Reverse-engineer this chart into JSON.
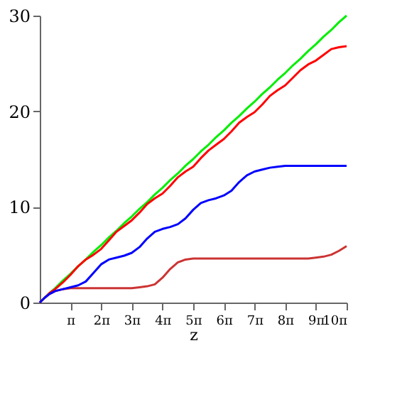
{
  "chart_data": {
    "type": "line",
    "xlabel": "z",
    "x": [
      0,
      0.5,
      1.0,
      1.57,
      2.36,
      3.14,
      3.93,
      4.71,
      5.5,
      6.28,
      7.07,
      7.85,
      8.64,
      9.42,
      10.21,
      11.0,
      11.78,
      12.57,
      13.35,
      14.14,
      14.92,
      15.71,
      16.49,
      17.28,
      18.06,
      18.85,
      19.63,
      20.42,
      21.21,
      21.99,
      22.78,
      23.56,
      24.35,
      25.13,
      25.92,
      26.7,
      27.49,
      28.27,
      29.06,
      29.85,
      30.63,
      31.42
    ],
    "series": [
      {
        "color": "#00ee00",
        "values": [
          0,
          0.5,
          1.0,
          1.5,
          2.3,
          3.0,
          3.8,
          4.5,
          5.3,
          6.0,
          6.8,
          7.5,
          8.3,
          9.0,
          9.8,
          10.5,
          11.3,
          12.0,
          12.8,
          13.5,
          14.3,
          15.0,
          15.8,
          16.5,
          17.3,
          18.0,
          18.8,
          19.5,
          20.3,
          21.0,
          21.8,
          22.5,
          23.3,
          24.0,
          24.8,
          25.5,
          26.3,
          27.0,
          27.8,
          28.5,
          29.3,
          30.0
        ]
      },
      {
        "color": "#ff0000",
        "values": [
          0,
          0.5,
          1.0,
          1.4,
          2.1,
          2.9,
          3.8,
          4.5,
          5.0,
          5.6,
          6.5,
          7.4,
          8.0,
          8.6,
          9.4,
          10.3,
          10.9,
          11.4,
          12.2,
          13.1,
          13.7,
          14.2,
          15.1,
          15.9,
          16.5,
          17.1,
          17.9,
          18.8,
          19.4,
          19.9,
          20.7,
          21.6,
          22.2,
          22.7,
          23.5,
          24.3,
          24.9,
          25.3,
          25.9,
          26.5,
          26.7,
          26.8
        ]
      },
      {
        "color": "#cc3333",
        "values": [
          0,
          0.5,
          0.9,
          1.2,
          1.4,
          1.5,
          1.5,
          1.5,
          1.5,
          1.5,
          1.5,
          1.5,
          1.5,
          1.5,
          1.6,
          1.7,
          1.9,
          2.6,
          3.5,
          4.2,
          4.5,
          4.6,
          4.6,
          4.6,
          4.6,
          4.6,
          4.6,
          4.6,
          4.6,
          4.6,
          4.6,
          4.6,
          4.6,
          4.6,
          4.6,
          4.6,
          4.6,
          4.7,
          4.8,
          5.0,
          5.4,
          5.9
        ]
      },
      {
        "color": "#0000ff",
        "values": [
          0,
          0.5,
          0.9,
          1.2,
          1.4,
          1.6,
          1.8,
          2.2,
          3.1,
          4.0,
          4.5,
          4.7,
          4.9,
          5.2,
          5.8,
          6.7,
          7.4,
          7.7,
          7.9,
          8.2,
          8.8,
          9.7,
          10.4,
          10.7,
          10.9,
          11.2,
          11.7,
          12.6,
          13.3,
          13.7,
          13.9,
          14.1,
          14.2,
          14.3,
          14.3,
          14.3,
          14.3,
          14.3,
          14.3,
          14.3,
          14.3,
          14.3
        ]
      }
    ],
    "xlim": [
      0,
      31.42
    ],
    "ylim": [
      0,
      30
    ],
    "xticks": [
      {
        "value": 3.14,
        "label": "π"
      },
      {
        "value": 6.28,
        "label": "2π"
      },
      {
        "value": 9.42,
        "label": "3π"
      },
      {
        "value": 12.57,
        "label": "4π"
      },
      {
        "value": 15.71,
        "label": "5π"
      },
      {
        "value": 18.85,
        "label": "6π"
      },
      {
        "value": 21.99,
        "label": "7π"
      },
      {
        "value": 25.13,
        "label": "8π"
      },
      {
        "value": 28.27,
        "label": "9π"
      },
      {
        "value": 31.42,
        "label": "10π"
      }
    ],
    "yticks": [
      0,
      10,
      20,
      30
    ],
    "marker": "none",
    "line_style": "solid"
  }
}
